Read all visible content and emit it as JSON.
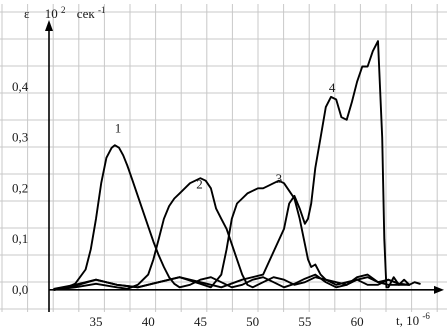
{
  "chart_data": {
    "type": "line",
    "ylabel": {
      "symbol": "ε",
      "scale": "10",
      "exp": "2",
      "unit": "сек",
      "unit_exp": "-1"
    },
    "xlabel": {
      "text": "t, 10",
      "exp": "-6"
    },
    "xlim": [
      30.5,
      66.5
    ],
    "ylim": [
      -0.02,
      0.5
    ],
    "xticks": [
      35,
      40,
      45,
      50,
      55,
      60
    ],
    "xtick_labels": [
      "35",
      "40",
      "45",
      "50",
      "55",
      "60"
    ],
    "yticks": [
      0.0,
      0.1,
      0.2,
      0.3,
      0.4
    ],
    "ytick_labels": [
      "0,0",
      "0,1",
      "0,2",
      "0,3",
      "0,4"
    ],
    "grid": true,
    "series": [
      {
        "name": "1",
        "label_at": [
          36.8,
          0.31
        ],
        "x": [
          31,
          32,
          33,
          34,
          34.5,
          35,
          35.5,
          36,
          36.5,
          36.8,
          37.2,
          37.6,
          38,
          38.5,
          39,
          39.5,
          40,
          40.5,
          41,
          41.5,
          42,
          42.5,
          43,
          44,
          45,
          46,
          47,
          48,
          49,
          50,
          51,
          52,
          53,
          54,
          55,
          56,
          57,
          58,
          59,
          60,
          61,
          62,
          63,
          64,
          65
        ],
        "y": [
          0.0,
          0.003,
          0.012,
          0.04,
          0.08,
          0.14,
          0.21,
          0.26,
          0.28,
          0.285,
          0.28,
          0.265,
          0.245,
          0.215,
          0.185,
          0.155,
          0.125,
          0.095,
          0.068,
          0.045,
          0.025,
          0.012,
          0.005,
          0.01,
          0.02,
          0.025,
          0.015,
          0.005,
          0.01,
          0.02,
          0.025,
          0.015,
          0.005,
          0.012,
          0.022,
          0.03,
          0.015,
          0.005,
          0.01,
          0.025,
          0.03,
          0.015,
          0.02,
          0.012,
          0.01
        ]
      },
      {
        "name": "2",
        "label_at": [
          44.6,
          0.2
        ],
        "x": [
          31,
          33,
          35,
          37,
          38,
          39,
          40,
          40.5,
          41,
          41.5,
          42,
          42.5,
          43,
          43.5,
          44,
          44.5,
          45,
          45.5,
          46,
          46.5,
          47,
          47.5,
          48,
          48.5,
          49,
          49.5,
          50,
          51,
          52,
          53,
          54,
          55,
          56,
          57,
          58,
          59,
          60,
          61,
          62,
          63,
          64,
          65
        ],
        "y": [
          0.0,
          0.005,
          0.012,
          0.005,
          0.002,
          0.01,
          0.03,
          0.06,
          0.1,
          0.14,
          0.165,
          0.18,
          0.19,
          0.2,
          0.21,
          0.215,
          0.22,
          0.215,
          0.2,
          0.16,
          0.14,
          0.12,
          0.09,
          0.06,
          0.03,
          0.01,
          0.005,
          0.015,
          0.025,
          0.02,
          0.01,
          0.015,
          0.025,
          0.02,
          0.01,
          0.015,
          0.02,
          0.01,
          0.01,
          0.02,
          0.012,
          0.01
        ]
      },
      {
        "name": "3",
        "label_at": [
          52.2,
          0.21
        ],
        "x": [
          31,
          33,
          35,
          37,
          39,
          41,
          43,
          45,
          46,
          47,
          47.5,
          48,
          48.5,
          49,
          49.5,
          50,
          50.5,
          51,
          51.5,
          52,
          52.5,
          53,
          53.5,
          54,
          54.5,
          55,
          55.3,
          55.6,
          56,
          56.5,
          57,
          58,
          59,
          60,
          61,
          62,
          63,
          64,
          65
        ],
        "y": [
          0.002,
          0.01,
          0.02,
          0.01,
          0.005,
          0.015,
          0.025,
          0.012,
          0.005,
          0.03,
          0.08,
          0.14,
          0.17,
          0.18,
          0.19,
          0.195,
          0.2,
          0.2,
          0.205,
          0.21,
          0.215,
          0.21,
          0.195,
          0.18,
          0.14,
          0.09,
          0.06,
          0.045,
          0.05,
          0.03,
          0.02,
          0.015,
          0.01,
          0.02,
          0.025,
          0.015,
          0.01,
          0.01,
          0.01
        ]
      },
      {
        "name": "4",
        "label_at": [
          57.3,
          0.39
        ],
        "x": [
          31,
          33,
          35,
          37,
          39,
          41,
          43,
          45,
          47,
          49,
          51,
          53,
          53.5,
          54,
          54.5,
          55,
          55.3,
          55.6,
          56,
          56.5,
          57,
          57.5,
          58,
          58.5,
          59,
          59.5,
          60,
          60.5,
          61,
          61.5,
          62,
          62.4,
          62.6,
          62.8,
          63,
          63.5,
          64,
          64.5,
          65,
          65.5,
          66
        ],
        "y": [
          0.0,
          0.008,
          0.02,
          0.01,
          0.005,
          0.015,
          0.025,
          0.015,
          0.005,
          0.02,
          0.03,
          0.12,
          0.17,
          0.185,
          0.16,
          0.13,
          0.14,
          0.17,
          0.24,
          0.3,
          0.36,
          0.38,
          0.375,
          0.34,
          0.335,
          0.37,
          0.41,
          0.44,
          0.44,
          0.47,
          0.49,
          0.3,
          0.1,
          0.005,
          0.005,
          0.025,
          0.01,
          0.02,
          0.01,
          0.015,
          0.012
        ]
      }
    ]
  }
}
